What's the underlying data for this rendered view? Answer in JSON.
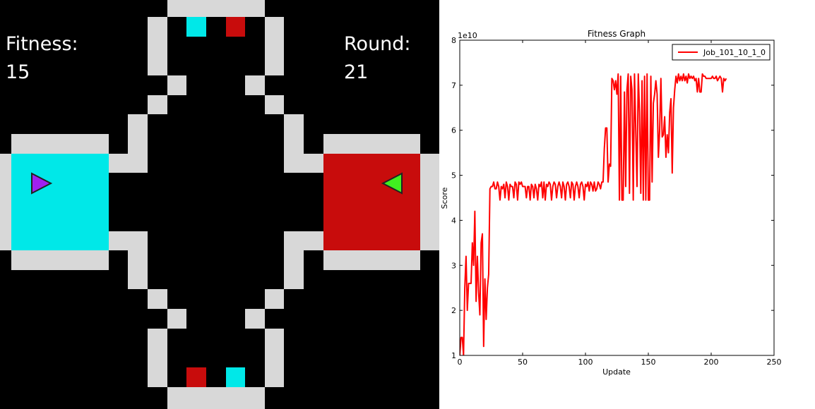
{
  "game": {
    "fitness_label": "Fitness:",
    "fitness": 15,
    "round_label": "Round:",
    "round": 21
  },
  "chart_data": {
    "type": "line",
    "title": "Fitness Graph",
    "xlabel": "Update",
    "ylabel": "Score",
    "y_offset_label": "1e10",
    "xlim": [
      0,
      250
    ],
    "xticks": [
      0,
      50,
      100,
      150,
      200,
      250
    ],
    "ylim": [
      1,
      8
    ],
    "yticks": [
      1,
      2,
      3,
      4,
      5,
      6,
      7,
      8
    ],
    "grid": false,
    "legend": "upper right",
    "series": [
      {
        "name": "Job_101_10_1_0",
        "color": "#ff0000",
        "x": [
          0,
          1,
          2,
          3,
          4,
          5,
          6,
          7,
          8,
          9,
          10,
          11,
          12,
          13,
          14,
          15,
          16,
          17,
          18,
          19,
          20,
          21,
          22,
          23,
          24,
          25,
          26,
          27,
          28,
          29,
          30,
          31,
          32,
          33,
          34,
          35,
          36,
          37,
          38,
          39,
          40,
          41,
          42,
          43,
          44,
          45,
          46,
          47,
          48,
          49,
          50,
          51,
          52,
          53,
          54,
          55,
          56,
          57,
          58,
          59,
          60,
          61,
          62,
          63,
          64,
          65,
          66,
          67,
          68,
          69,
          70,
          71,
          72,
          73,
          74,
          75,
          76,
          77,
          78,
          79,
          80,
          81,
          82,
          83,
          84,
          85,
          86,
          87,
          88,
          89,
          90,
          91,
          92,
          93,
          94,
          95,
          96,
          97,
          98,
          99,
          100,
          101,
          102,
          103,
          104,
          105,
          106,
          107,
          108,
          109,
          110,
          111,
          112,
          113,
          114,
          115,
          116,
          117,
          118,
          119,
          120,
          121,
          122,
          123,
          124,
          125,
          126,
          127,
          128,
          129,
          130,
          131,
          132,
          133,
          134,
          135,
          136,
          137,
          138,
          139,
          140,
          141,
          142,
          143,
          144,
          145,
          146,
          147,
          148,
          149,
          150,
          151,
          152,
          153,
          154,
          155,
          156,
          157,
          158,
          159,
          160,
          161,
          162,
          163,
          164,
          165,
          166,
          167,
          168,
          169,
          170,
          171,
          172,
          173,
          174,
          175,
          176,
          177,
          178,
          179,
          180,
          181,
          182,
          183,
          184,
          185,
          186,
          187,
          188,
          189,
          190,
          191,
          192,
          193,
          194,
          195,
          196,
          197,
          198,
          199,
          200,
          201,
          202,
          203,
          204,
          205,
          206,
          207,
          208,
          209,
          210,
          211,
          212
        ],
        "values": [
          1.0,
          1.4,
          1.4,
          1.0,
          2.5,
          3.2,
          2.0,
          2.6,
          2.6,
          2.6,
          3.5,
          3.0,
          4.2,
          2.2,
          3.2,
          2.4,
          1.9,
          3.5,
          3.7,
          1.2,
          2.7,
          1.8,
          2.5,
          2.8,
          4.7,
          4.75,
          4.75,
          4.85,
          4.7,
          4.7,
          4.85,
          4.75,
          4.45,
          4.75,
          4.7,
          4.8,
          4.5,
          4.85,
          4.75,
          4.45,
          4.8,
          4.75,
          4.75,
          4.5,
          4.85,
          4.8,
          4.45,
          4.85,
          4.8,
          4.85,
          4.75,
          4.75,
          4.75,
          4.5,
          4.75,
          4.75,
          4.45,
          4.8,
          4.75,
          4.5,
          4.8,
          4.7,
          4.45,
          4.8,
          4.75,
          4.85,
          4.5,
          4.85,
          4.45,
          4.8,
          4.75,
          4.85,
          4.8,
          4.45,
          4.75,
          4.85,
          4.8,
          4.5,
          4.75,
          4.85,
          4.75,
          4.5,
          4.85,
          4.75,
          4.45,
          4.8,
          4.85,
          4.75,
          4.5,
          4.85,
          4.8,
          4.45,
          4.75,
          4.85,
          4.75,
          4.5,
          4.8,
          4.85,
          4.75,
          4.45,
          4.8,
          4.75,
          4.85,
          4.65,
          4.85,
          4.8,
          4.65,
          4.85,
          4.65,
          4.7,
          4.85,
          4.8,
          4.7,
          4.85,
          4.85,
          5.6,
          6.05,
          6.05,
          4.85,
          5.25,
          5.2,
          7.15,
          7.1,
          6.9,
          7.1,
          6.8,
          7.25,
          4.45,
          7.2,
          4.45,
          4.45,
          6.85,
          4.75,
          6.9,
          7.25,
          4.6,
          7.2,
          6.9,
          4.45,
          7.25,
          6.0,
          4.75,
          7.25,
          6.4,
          4.6,
          7.1,
          4.45,
          7.2,
          4.45,
          7.25,
          4.45,
          4.45,
          7.2,
          4.85,
          6.6,
          6.8,
          7.1,
          6.8,
          5.4,
          6.0,
          7.15,
          5.85,
          5.9,
          6.3,
          5.4,
          5.9,
          5.5,
          6.4,
          6.7,
          5.05,
          6.5,
          6.9,
          7.2,
          7.05,
          7.25,
          7.1,
          7.2,
          7.1,
          7.25,
          7.1,
          7.2,
          7.05,
          7.25,
          7.15,
          7.2,
          7.15,
          7.2,
          7.1,
          7.15,
          6.85,
          7.15,
          6.85,
          6.85,
          7.25,
          7.2,
          7.2,
          7.15,
          7.15,
          7.15,
          7.15,
          7.15,
          7.2,
          7.15,
          7.15,
          7.2,
          7.1,
          7.15,
          7.2,
          7.15,
          6.85,
          7.15,
          7.1,
          7.15
        ]
      }
    ]
  }
}
